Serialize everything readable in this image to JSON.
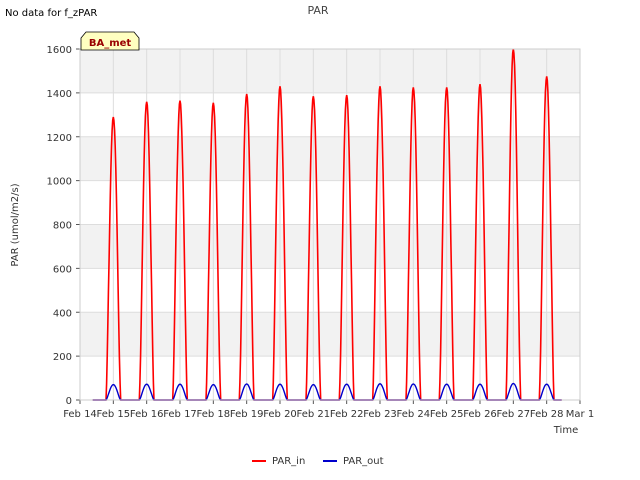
{
  "annotation": "No data for f_zPAR",
  "site_badge": "BA_met",
  "chart_data": {
    "type": "line",
    "title": "PAR",
    "xlabel": "Time",
    "ylabel": "PAR (umol/m2/s)",
    "ylim": [
      0,
      1600
    ],
    "yticks": [
      0,
      200,
      400,
      600,
      800,
      1000,
      1200,
      1400,
      1600
    ],
    "xlim": [
      14,
      29
    ],
    "xticks": [
      {
        "x": 14,
        "label": "Feb 14"
      },
      {
        "x": 15,
        "label": "Feb 15"
      },
      {
        "x": 16,
        "label": "Feb 16"
      },
      {
        "x": 17,
        "label": "Feb 17"
      },
      {
        "x": 18,
        "label": "Feb 18"
      },
      {
        "x": 19,
        "label": "Feb 19"
      },
      {
        "x": 20,
        "label": "Feb 20"
      },
      {
        "x": 21,
        "label": "Feb 21"
      },
      {
        "x": 22,
        "label": "Feb 22"
      },
      {
        "x": 23,
        "label": "Feb 23"
      },
      {
        "x": 24,
        "label": "Feb 24"
      },
      {
        "x": 25,
        "label": "Feb 25"
      },
      {
        "x": 26,
        "label": "Feb 26"
      },
      {
        "x": 27,
        "label": "Feb 27"
      },
      {
        "x": 28,
        "label": "Feb 28"
      },
      {
        "x": 29,
        "label": "Mar 1"
      }
    ],
    "grid": true,
    "legend_position": "bottom-center",
    "series": [
      {
        "name": "PAR_in",
        "color": "#ff0000",
        "daily_peaks": [
          {
            "day": 15.0,
            "peak": 1290
          },
          {
            "day": 16.0,
            "peak": 1360
          },
          {
            "day": 17.0,
            "peak": 1365
          },
          {
            "day": 18.0,
            "peak": 1355
          },
          {
            "day": 19.0,
            "peak": 1395
          },
          {
            "day": 20.0,
            "peak": 1430
          },
          {
            "day": 21.0,
            "peak": 1385
          },
          {
            "day": 22.0,
            "peak": 1390
          },
          {
            "day": 23.0,
            "peak": 1430
          },
          {
            "day": 24.0,
            "peak": 1425
          },
          {
            "day": 25.0,
            "peak": 1425
          },
          {
            "day": 26.0,
            "peak": 1440
          },
          {
            "day": 27.0,
            "peak": 1600
          },
          {
            "day": 28.0,
            "peak": 1475
          }
        ]
      },
      {
        "name": "PAR_out",
        "color": "#0000cc",
        "daily_peaks": [
          {
            "day": 15.0,
            "peak": 70
          },
          {
            "day": 16.0,
            "peak": 72
          },
          {
            "day": 17.0,
            "peak": 72
          },
          {
            "day": 18.0,
            "peak": 70
          },
          {
            "day": 19.0,
            "peak": 73
          },
          {
            "day": 20.0,
            "peak": 72
          },
          {
            "day": 21.0,
            "peak": 70
          },
          {
            "day": 22.0,
            "peak": 72
          },
          {
            "day": 23.0,
            "peak": 74
          },
          {
            "day": 24.0,
            "peak": 73
          },
          {
            "day": 25.0,
            "peak": 72
          },
          {
            "day": 26.0,
            "peak": 72
          },
          {
            "day": 27.0,
            "peak": 75
          },
          {
            "day": 28.0,
            "peak": 72
          }
        ]
      }
    ]
  }
}
